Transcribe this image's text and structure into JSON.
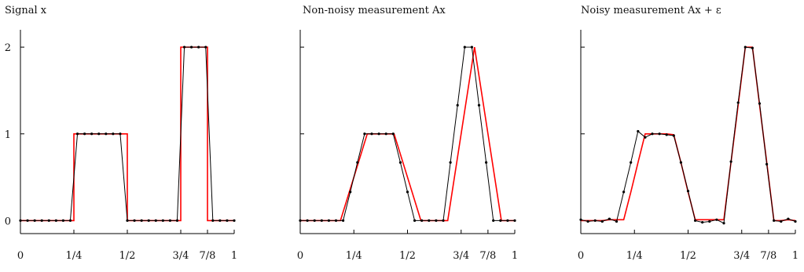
{
  "chart_data": [
    {
      "type": "line",
      "title": "Signal x",
      "xlim": [
        0,
        1
      ],
      "ylim": [
        -0.15,
        2.2
      ],
      "xticks": [
        0,
        0.25,
        0.5,
        0.75,
        0.875,
        1
      ],
      "xtick_labels": [
        "0",
        "1/4",
        "1/2",
        "3/4",
        "7/8",
        "1"
      ],
      "yticks": [
        0,
        1,
        2
      ],
      "ytick_labels": [
        "0",
        "1",
        "2"
      ],
      "grid": false,
      "series": [
        {
          "color": "#ff0000",
          "style": "step",
          "x": [
            0,
            0.25,
            0.25,
            0.5,
            0.5,
            0.75,
            0.75,
            0.875,
            0.875,
            1
          ],
          "y": [
            0,
            0,
            1,
            1,
            0,
            0,
            2,
            2,
            0,
            0
          ]
        },
        {
          "color": "#000000",
          "style": "line-markers",
          "x": [
            0,
            0.0333,
            0.0667,
            0.1,
            0.1333,
            0.1667,
            0.2,
            0.2333,
            0.2667,
            0.3,
            0.3333,
            0.3667,
            0.4,
            0.4333,
            0.4667,
            0.5,
            0.5333,
            0.5667,
            0.6,
            0.6333,
            0.6667,
            0.7,
            0.7333,
            0.7667,
            0.8,
            0.8333,
            0.8667,
            0.9,
            0.9333,
            0.9667,
            1
          ],
          "y": [
            0,
            0,
            0,
            0,
            0,
            0,
            0,
            0,
            1,
            1,
            1,
            1,
            1,
            1,
            1,
            0,
            0,
            0,
            0,
            0,
            0,
            0,
            0,
            2,
            2,
            2,
            2,
            0,
            0,
            0,
            0
          ]
        }
      ]
    },
    {
      "type": "line",
      "title": "Non-noisy measurement Ax",
      "xlim": [
        0,
        1
      ],
      "ylim": [
        -0.15,
        2.2
      ],
      "xticks": [
        0,
        0.25,
        0.5,
        0.75,
        0.875,
        1
      ],
      "xtick_labels": [
        "0",
        "1/4",
        "1/2",
        "3/4",
        "7/8",
        "1"
      ],
      "yticks": [
        0,
        1,
        2
      ],
      "grid": false,
      "series": [
        {
          "color": "#ff0000",
          "style": "line",
          "x": [
            0,
            0.1875,
            0.3125,
            0.4375,
            0.5625,
            0.6875,
            0.8125,
            0.9375,
            1
          ],
          "y": [
            0,
            0,
            1,
            1,
            0,
            0,
            2,
            0,
            0
          ]
        },
        {
          "color": "#000000",
          "style": "line-markers",
          "x": [
            0,
            0.0333,
            0.0667,
            0.1,
            0.1333,
            0.1667,
            0.2,
            0.2333,
            0.2667,
            0.3,
            0.3333,
            0.3667,
            0.4,
            0.4333,
            0.4667,
            0.5,
            0.5333,
            0.5667,
            0.6,
            0.6333,
            0.6667,
            0.7,
            0.7333,
            0.7667,
            0.8,
            0.8333,
            0.8667,
            0.9,
            0.9333,
            0.9667,
            1
          ],
          "y": [
            0,
            0,
            0,
            0,
            0,
            0,
            0,
            0.33,
            0.67,
            1,
            1,
            1,
            1,
            1,
            0.67,
            0.33,
            0,
            0,
            0,
            0,
            0,
            0.67,
            1.33,
            2,
            2,
            1.33,
            0.67,
            0,
            0,
            0,
            0
          ]
        }
      ]
    },
    {
      "type": "line",
      "title": "Noisy measurement Ax + ε",
      "xlim": [
        0,
        1
      ],
      "ylim": [
        -0.15,
        2.2
      ],
      "xticks": [
        0,
        0.25,
        0.5,
        0.75,
        0.875,
        1
      ],
      "xtick_labels": [
        "0",
        "1/4",
        "1/2",
        "3/4",
        "7/8",
        "1"
      ],
      "yticks": [
        0,
        1,
        2
      ],
      "grid": false,
      "series": [
        {
          "color": "#ff0000",
          "style": "line",
          "x": [
            0,
            0.0333,
            0.0667,
            0.1,
            0.1333,
            0.1667,
            0.2,
            0.2333,
            0.2667,
            0.3,
            0.3333,
            0.3667,
            0.4,
            0.4333,
            0.4667,
            0.5,
            0.5333,
            0.5667,
            0.6,
            0.6333,
            0.6667,
            0.7,
            0.7333,
            0.7667,
            0.8,
            0.8333,
            0.8667,
            0.9,
            0.9333,
            0.9667,
            1
          ],
          "y": [
            0,
            0,
            0,
            0,
            0.01,
            0.01,
            0.01,
            0.33,
            0.67,
            1,
            1,
            1,
            1,
            0.99,
            0.67,
            0.33,
            0.01,
            0.01,
            0.01,
            0.01,
            0.01,
            0.67,
            1.33,
            2,
            2,
            1.33,
            0.67,
            0,
            0,
            0.01,
            0
          ]
        },
        {
          "color": "#000000",
          "style": "line-markers",
          "x": [
            0,
            0.0333,
            0.0667,
            0.1,
            0.1333,
            0.1667,
            0.2,
            0.2333,
            0.2667,
            0.3,
            0.3333,
            0.3667,
            0.4,
            0.4333,
            0.4667,
            0.5,
            0.5333,
            0.5667,
            0.6,
            0.6333,
            0.6667,
            0.7,
            0.7333,
            0.7667,
            0.8,
            0.8333,
            0.8667,
            0.9,
            0.9333,
            0.9667,
            1
          ],
          "y": [
            0.01,
            -0.01,
            0.0,
            -0.01,
            0.02,
            -0.01,
            0.33,
            0.67,
            1.03,
            0.96,
            1.0,
            1.0,
            0.99,
            0.98,
            0.67,
            0.34,
            0.0,
            -0.02,
            -0.01,
            0.01,
            -0.03,
            0.68,
            1.36,
            2.0,
            1.99,
            1.35,
            0.65,
            0.0,
            -0.01,
            0.02,
            -0.01
          ]
        }
      ]
    }
  ]
}
